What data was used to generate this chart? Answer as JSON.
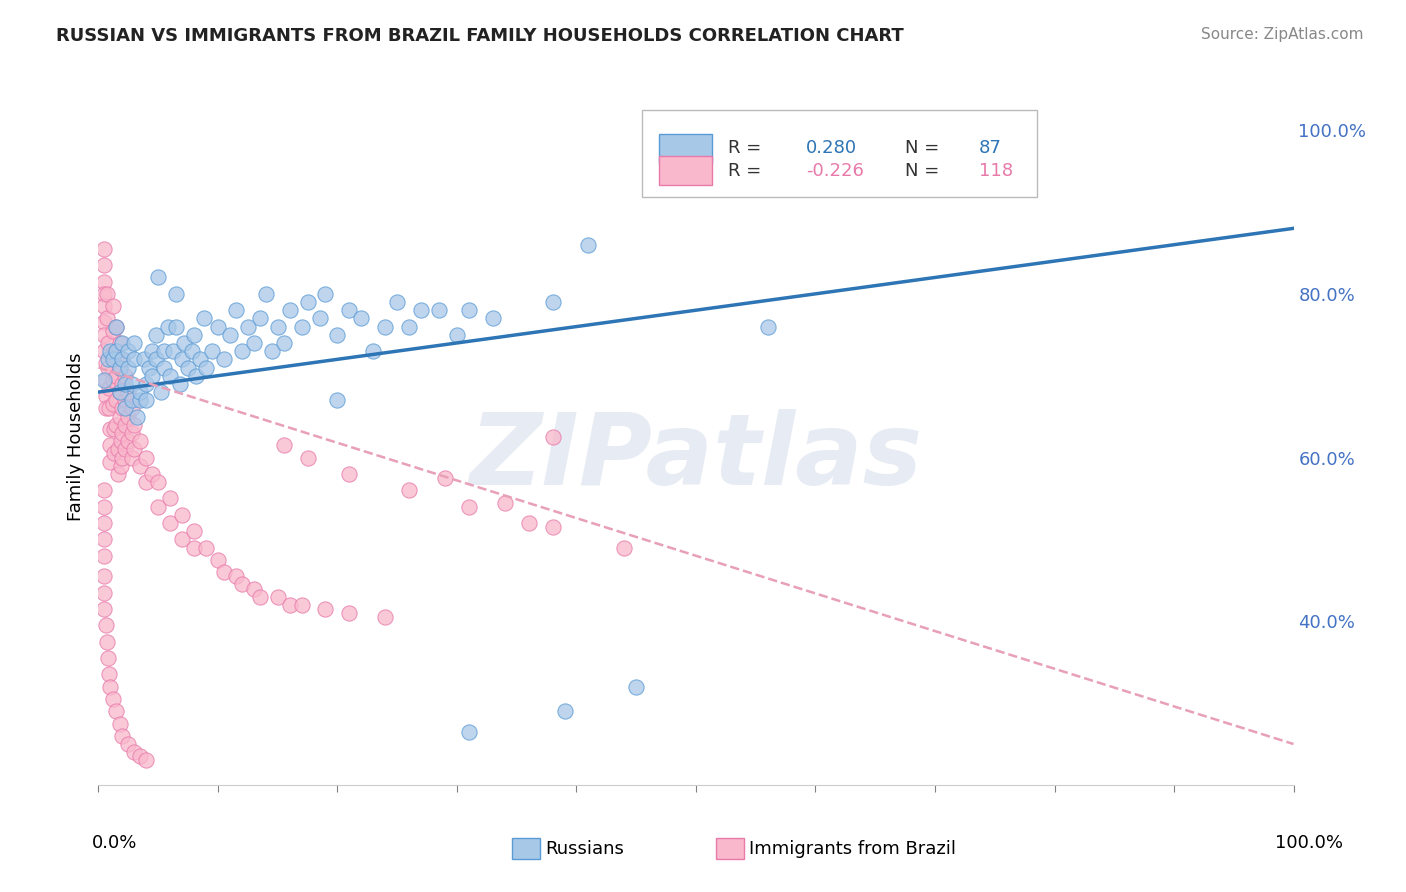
{
  "title": "RUSSIAN VS IMMIGRANTS FROM BRAZIL FAMILY HOUSEHOLDS CORRELATION CHART",
  "source": "Source: ZipAtlas.com",
  "ylabel": "Family Households",
  "watermark_text": "ZIPatlas",
  "legend": {
    "russian": {
      "R": 0.28,
      "N": 87,
      "label": "Russians"
    },
    "brazil": {
      "R": -0.226,
      "N": 118,
      "label": "Immigrants from Brazil"
    }
  },
  "russian_color": "#a8c8e8",
  "russian_edge": "#5b9bd5",
  "brazil_color": "#f9b8cc",
  "brazil_edge": "#e87aaa",
  "trend_russian_color": "#2e75b6",
  "trend_brazil_color": "#e8a0b8",
  "background_color": "#ffffff",
  "grid_color": "#cccccc",
  "russian_scatter": [
    [
      0.005,
      0.695
    ],
    [
      0.008,
      0.72
    ],
    [
      0.01,
      0.73
    ],
    [
      0.012,
      0.72
    ],
    [
      0.015,
      0.76
    ],
    [
      0.015,
      0.73
    ],
    [
      0.018,
      0.68
    ],
    [
      0.018,
      0.71
    ],
    [
      0.02,
      0.72
    ],
    [
      0.02,
      0.74
    ],
    [
      0.022,
      0.66
    ],
    [
      0.022,
      0.69
    ],
    [
      0.025,
      0.71
    ],
    [
      0.025,
      0.73
    ],
    [
      0.028,
      0.67
    ],
    [
      0.028,
      0.69
    ],
    [
      0.03,
      0.72
    ],
    [
      0.03,
      0.74
    ],
    [
      0.032,
      0.65
    ],
    [
      0.035,
      0.67
    ],
    [
      0.035,
      0.68
    ],
    [
      0.038,
      0.72
    ],
    [
      0.04,
      0.67
    ],
    [
      0.04,
      0.69
    ],
    [
      0.042,
      0.71
    ],
    [
      0.045,
      0.73
    ],
    [
      0.045,
      0.7
    ],
    [
      0.048,
      0.72
    ],
    [
      0.048,
      0.75
    ],
    [
      0.05,
      0.82
    ],
    [
      0.052,
      0.68
    ],
    [
      0.055,
      0.71
    ],
    [
      0.055,
      0.73
    ],
    [
      0.058,
      0.76
    ],
    [
      0.06,
      0.7
    ],
    [
      0.062,
      0.73
    ],
    [
      0.065,
      0.76
    ],
    [
      0.065,
      0.8
    ],
    [
      0.068,
      0.69
    ],
    [
      0.07,
      0.72
    ],
    [
      0.072,
      0.74
    ],
    [
      0.075,
      0.71
    ],
    [
      0.078,
      0.73
    ],
    [
      0.08,
      0.75
    ],
    [
      0.082,
      0.7
    ],
    [
      0.085,
      0.72
    ],
    [
      0.088,
      0.77
    ],
    [
      0.09,
      0.71
    ],
    [
      0.095,
      0.73
    ],
    [
      0.1,
      0.76
    ],
    [
      0.105,
      0.72
    ],
    [
      0.11,
      0.75
    ],
    [
      0.115,
      0.78
    ],
    [
      0.12,
      0.73
    ],
    [
      0.125,
      0.76
    ],
    [
      0.13,
      0.74
    ],
    [
      0.135,
      0.77
    ],
    [
      0.14,
      0.8
    ],
    [
      0.145,
      0.73
    ],
    [
      0.15,
      0.76
    ],
    [
      0.155,
      0.74
    ],
    [
      0.16,
      0.78
    ],
    [
      0.17,
      0.76
    ],
    [
      0.175,
      0.79
    ],
    [
      0.185,
      0.77
    ],
    [
      0.19,
      0.8
    ],
    [
      0.2,
      0.75
    ],
    [
      0.21,
      0.78
    ],
    [
      0.22,
      0.77
    ],
    [
      0.23,
      0.73
    ],
    [
      0.24,
      0.76
    ],
    [
      0.25,
      0.79
    ],
    [
      0.26,
      0.76
    ],
    [
      0.27,
      0.78
    ],
    [
      0.285,
      0.78
    ],
    [
      0.3,
      0.75
    ],
    [
      0.31,
      0.78
    ],
    [
      0.33,
      0.77
    ],
    [
      0.38,
      0.79
    ],
    [
      0.41,
      0.86
    ],
    [
      0.56,
      0.76
    ],
    [
      0.2,
      0.67
    ],
    [
      0.31,
      0.265
    ],
    [
      0.39,
      0.29
    ],
    [
      0.45,
      0.32
    ]
  ],
  "brazil_scatter": [
    [
      0.005,
      0.855
    ],
    [
      0.005,
      0.835
    ],
    [
      0.005,
      0.815
    ],
    [
      0.005,
      0.8
    ],
    [
      0.005,
      0.785
    ],
    [
      0.005,
      0.765
    ],
    [
      0.005,
      0.75
    ],
    [
      0.005,
      0.73
    ],
    [
      0.006,
      0.715
    ],
    [
      0.006,
      0.695
    ],
    [
      0.006,
      0.675
    ],
    [
      0.006,
      0.66
    ],
    [
      0.007,
      0.8
    ],
    [
      0.007,
      0.77
    ],
    [
      0.008,
      0.74
    ],
    [
      0.008,
      0.71
    ],
    [
      0.009,
      0.685
    ],
    [
      0.009,
      0.66
    ],
    [
      0.01,
      0.635
    ],
    [
      0.01,
      0.615
    ],
    [
      0.01,
      0.595
    ],
    [
      0.012,
      0.785
    ],
    [
      0.012,
      0.755
    ],
    [
      0.012,
      0.725
    ],
    [
      0.012,
      0.695
    ],
    [
      0.012,
      0.665
    ],
    [
      0.013,
      0.635
    ],
    [
      0.013,
      0.605
    ],
    [
      0.015,
      0.76
    ],
    [
      0.015,
      0.73
    ],
    [
      0.015,
      0.7
    ],
    [
      0.015,
      0.67
    ],
    [
      0.015,
      0.64
    ],
    [
      0.016,
      0.61
    ],
    [
      0.016,
      0.58
    ],
    [
      0.018,
      0.74
    ],
    [
      0.018,
      0.71
    ],
    [
      0.018,
      0.68
    ],
    [
      0.018,
      0.65
    ],
    [
      0.019,
      0.62
    ],
    [
      0.019,
      0.59
    ],
    [
      0.02,
      0.72
    ],
    [
      0.02,
      0.69
    ],
    [
      0.02,
      0.66
    ],
    [
      0.02,
      0.63
    ],
    [
      0.02,
      0.6
    ],
    [
      0.022,
      0.7
    ],
    [
      0.022,
      0.67
    ],
    [
      0.022,
      0.64
    ],
    [
      0.022,
      0.61
    ],
    [
      0.025,
      0.68
    ],
    [
      0.025,
      0.65
    ],
    [
      0.025,
      0.62
    ],
    [
      0.028,
      0.66
    ],
    [
      0.028,
      0.63
    ],
    [
      0.028,
      0.6
    ],
    [
      0.03,
      0.64
    ],
    [
      0.03,
      0.61
    ],
    [
      0.035,
      0.62
    ],
    [
      0.035,
      0.59
    ],
    [
      0.04,
      0.6
    ],
    [
      0.04,
      0.57
    ],
    [
      0.045,
      0.58
    ],
    [
      0.05,
      0.57
    ],
    [
      0.05,
      0.54
    ],
    [
      0.06,
      0.55
    ],
    [
      0.06,
      0.52
    ],
    [
      0.07,
      0.53
    ],
    [
      0.07,
      0.5
    ],
    [
      0.08,
      0.51
    ],
    [
      0.08,
      0.49
    ],
    [
      0.09,
      0.49
    ],
    [
      0.1,
      0.475
    ],
    [
      0.105,
      0.46
    ],
    [
      0.115,
      0.455
    ],
    [
      0.12,
      0.445
    ],
    [
      0.13,
      0.44
    ],
    [
      0.135,
      0.43
    ],
    [
      0.15,
      0.43
    ],
    [
      0.16,
      0.42
    ],
    [
      0.17,
      0.42
    ],
    [
      0.19,
      0.415
    ],
    [
      0.21,
      0.41
    ],
    [
      0.24,
      0.405
    ],
    [
      0.005,
      0.56
    ],
    [
      0.005,
      0.54
    ],
    [
      0.005,
      0.52
    ],
    [
      0.005,
      0.5
    ],
    [
      0.005,
      0.48
    ],
    [
      0.005,
      0.455
    ],
    [
      0.005,
      0.435
    ],
    [
      0.005,
      0.415
    ],
    [
      0.006,
      0.395
    ],
    [
      0.007,
      0.375
    ],
    [
      0.008,
      0.355
    ],
    [
      0.009,
      0.335
    ],
    [
      0.01,
      0.32
    ],
    [
      0.012,
      0.305
    ],
    [
      0.015,
      0.29
    ],
    [
      0.018,
      0.275
    ],
    [
      0.02,
      0.26
    ],
    [
      0.025,
      0.25
    ],
    [
      0.03,
      0.24
    ],
    [
      0.035,
      0.235
    ],
    [
      0.04,
      0.23
    ],
    [
      0.34,
      0.545
    ],
    [
      0.38,
      0.515
    ],
    [
      0.29,
      0.575
    ],
    [
      0.44,
      0.49
    ],
    [
      0.38,
      0.625
    ],
    [
      0.155,
      0.615
    ],
    [
      0.175,
      0.6
    ],
    [
      0.21,
      0.58
    ],
    [
      0.26,
      0.56
    ],
    [
      0.31,
      0.54
    ],
    [
      0.36,
      0.52
    ]
  ],
  "xlim": [
    0.0,
    1.0
  ],
  "ylim": [
    0.2,
    1.05
  ],
  "yticks": [
    0.4,
    0.6,
    0.8,
    1.0
  ],
  "ytick_labels": [
    "40.0%",
    "60.0%",
    "80.0%",
    "100.0%"
  ],
  "trend_russian_start_y": 0.68,
  "trend_russian_end_y": 0.88,
  "trend_brazil_start_y": 0.71,
  "trend_brazil_end_y": 0.25
}
